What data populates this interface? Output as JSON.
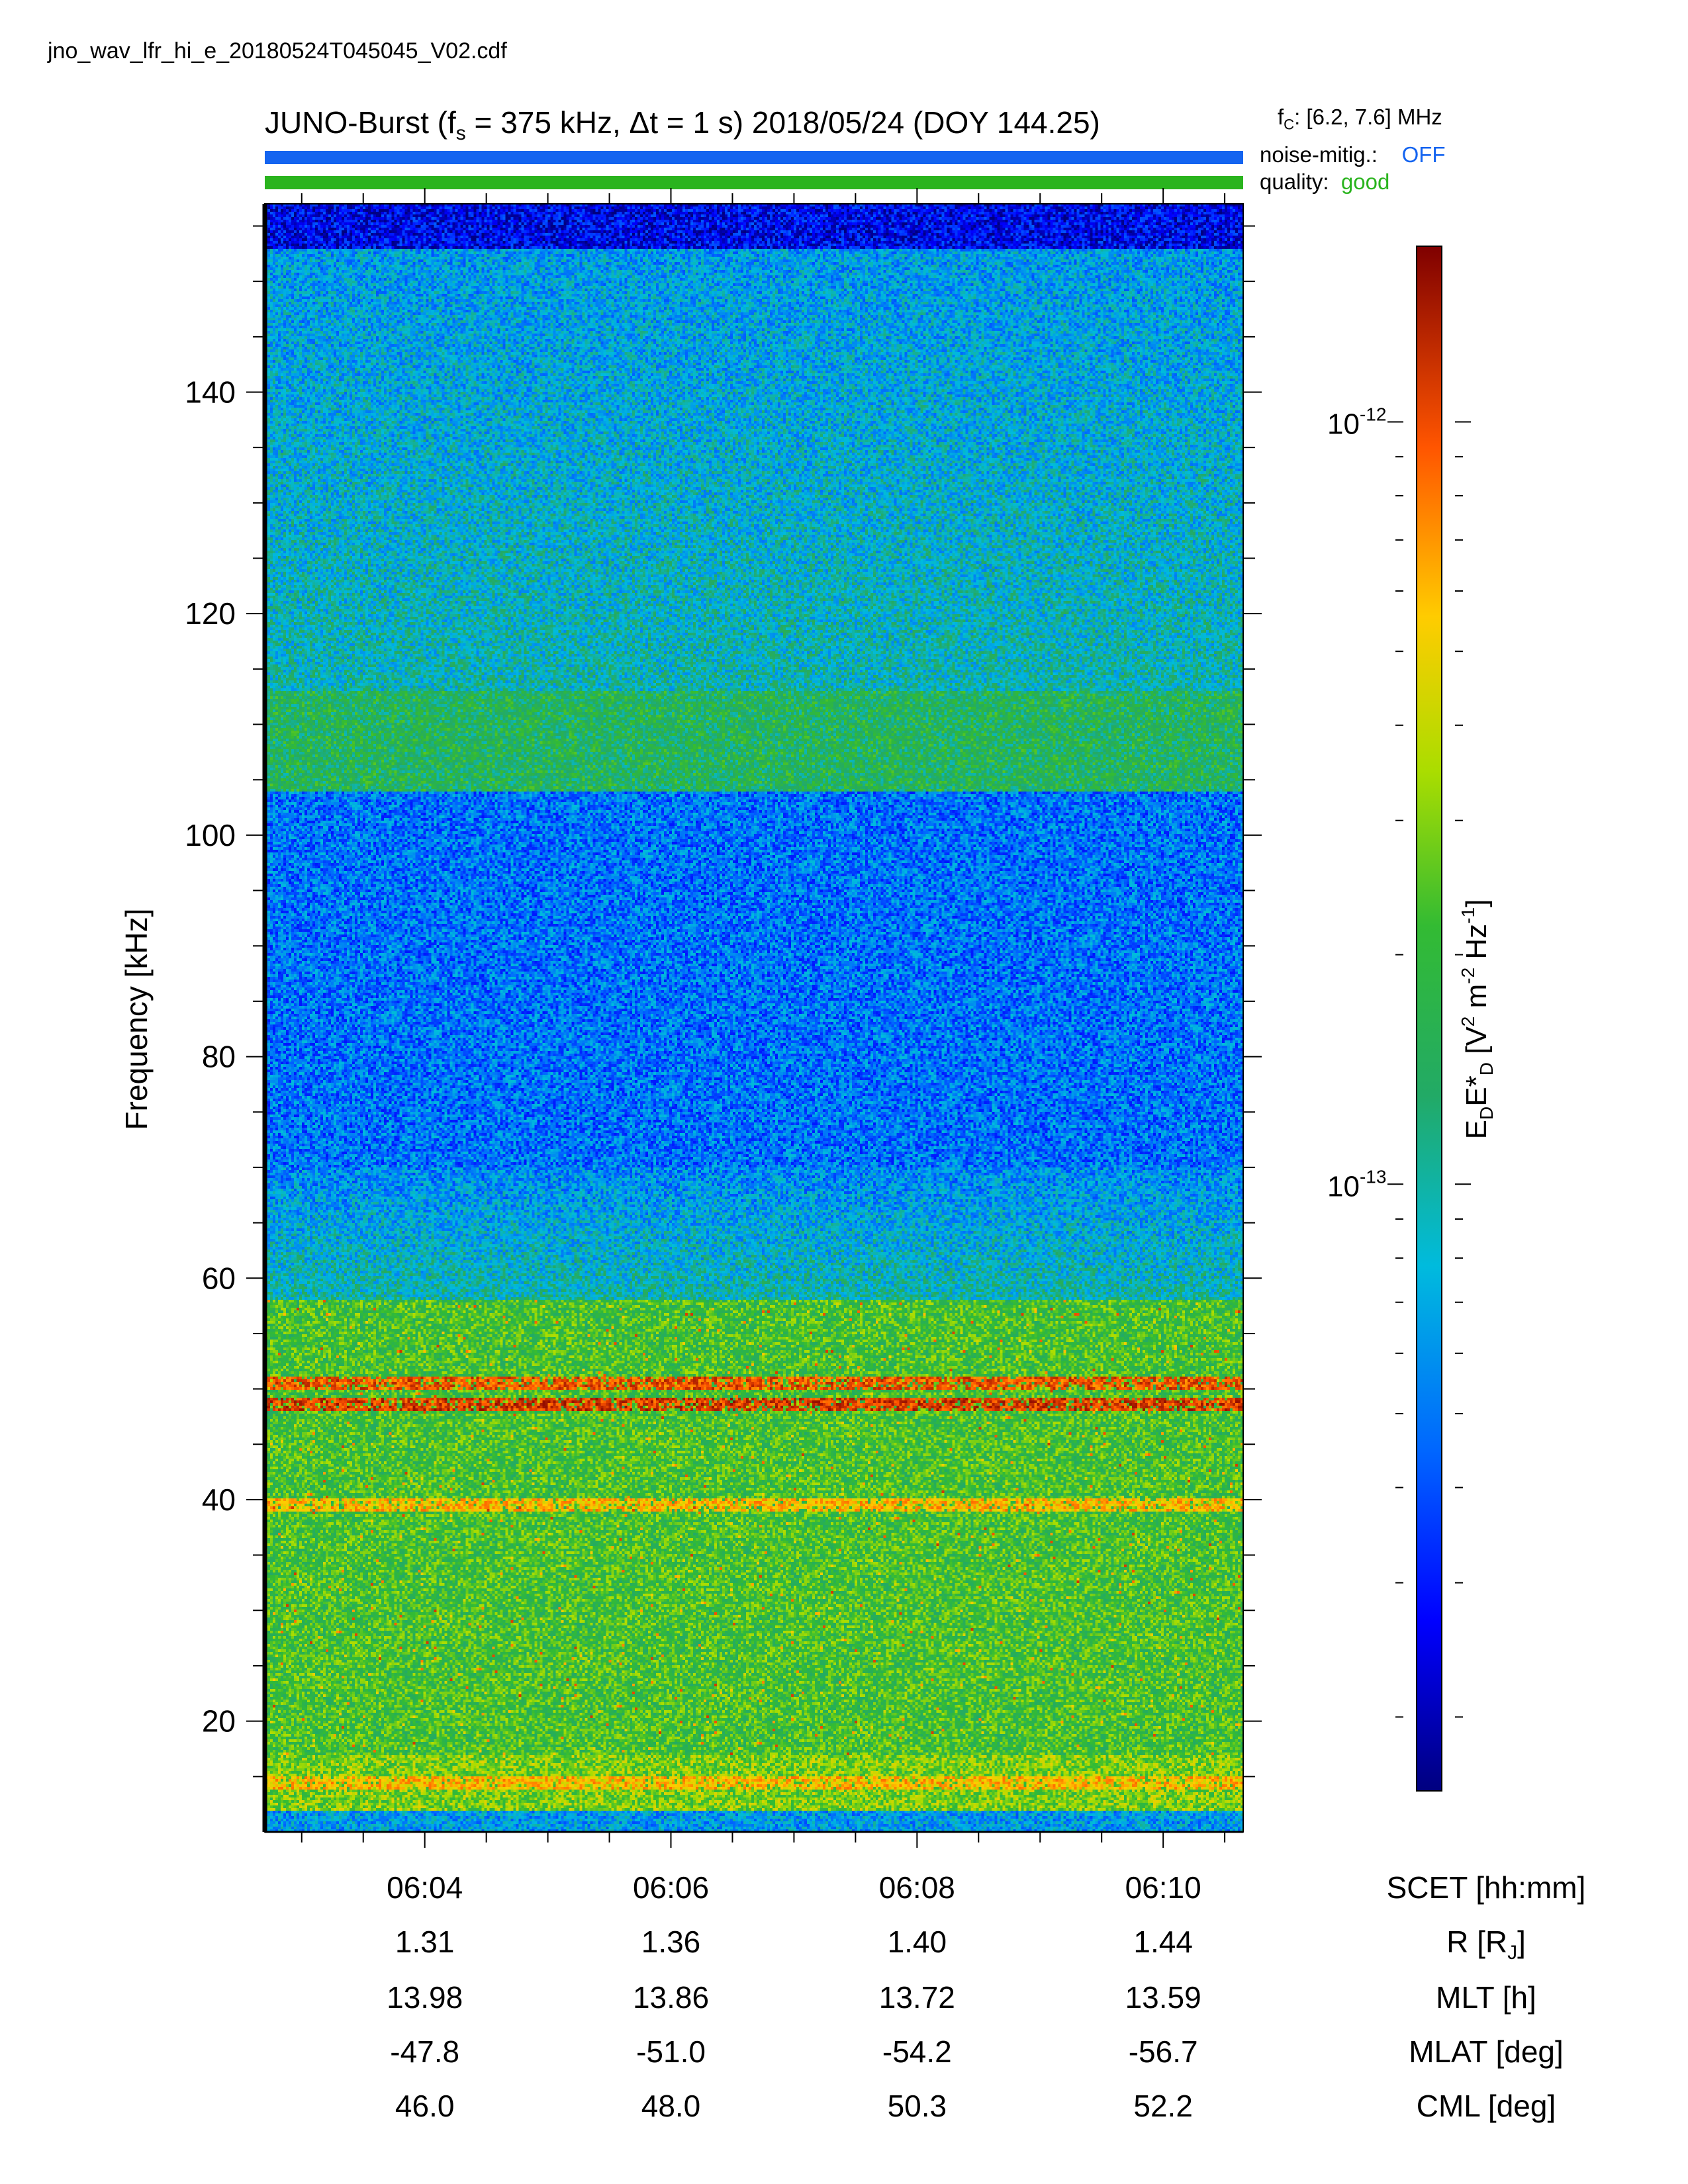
{
  "header": {
    "filename": "jno_wav_lfr_hi_e_20180524T045045_V02.cdf",
    "title_prefix": "JUNO-Burst (f",
    "title_sub": "s",
    "title_rest": " = 375 kHz, Δt = 1 s)  2018/05/24 (DOY 144.25)",
    "fc_label": "f",
    "fc_sub": "C",
    "fc_value": ": [6.2, 7.6] MHz",
    "noise_label": "noise-mitig.:",
    "noise_value": "OFF",
    "quality_label": "quality:",
    "quality_value": "good"
  },
  "colors": {
    "noise_bar": "#1464f0",
    "quality_bar": "#2ab41e",
    "noise_value": "#1464f0",
    "quality_value": "#2ab41e"
  },
  "chart_data": {
    "type": "heatmap",
    "ylabel": "Frequency [kHz]",
    "ylim": [
      10,
      157
    ],
    "y_ticks": [
      20,
      40,
      60,
      80,
      100,
      120,
      140
    ],
    "y_tick_labels": [
      "20",
      "40",
      "60",
      "80",
      "100",
      "120",
      "140"
    ],
    "xlim_minutes": [
      362.7,
      370.65
    ],
    "x_ticks_minutes": [
      364,
      366,
      368,
      370
    ],
    "colorbar": {
      "label_parts": [
        "E",
        "D",
        "E*",
        "D",
        " [V",
        "2",
        " m",
        "-2",
        " Hz",
        "-1",
        "]"
      ],
      "scale": "log",
      "range": [
        1.6e-14,
        1.7e-12
      ],
      "tick_labels": [
        {
          "base": "10",
          "exp": "-12",
          "value": 1e-12
        },
        {
          "base": "10",
          "exp": "-13",
          "value": 1e-13
        }
      ],
      "colormap": "jet"
    },
    "features": [
      {
        "desc": "enhanced emission band",
        "freq_khz": [
          106,
          112
        ],
        "intensity": 0.52
      },
      {
        "desc": "broadband emission",
        "freq_khz": [
          12,
          58
        ],
        "intensity": 0.7
      },
      {
        "desc": "narrowband line",
        "freq_khz": 50.5,
        "intensity": 0.95
      },
      {
        "desc": "narrowband line",
        "freq_khz": 48.5,
        "intensity": 0.98
      },
      {
        "desc": "narrowband line",
        "freq_khz": 39.5,
        "intensity": 0.85
      },
      {
        "desc": "narrowband line",
        "freq_khz": 14.5,
        "intensity": 0.85
      }
    ],
    "ephemeris": {
      "labels": [
        "SCET [hh:mm]",
        "R [R",
        "MLT [h]",
        "MLAT [deg]",
        "CML [deg]"
      ],
      "r_sub": "J",
      "r_close": "]",
      "rows": [
        [
          "06:04",
          "06:06",
          "06:08",
          "06:10"
        ],
        [
          "1.31",
          "1.36",
          "1.40",
          "1.44"
        ],
        [
          "13.98",
          "13.86",
          "13.72",
          "13.59"
        ],
        [
          "-47.8",
          "-51.0",
          "-54.2",
          "-56.7"
        ],
        [
          "46.0",
          "48.0",
          "50.3",
          "52.2"
        ]
      ]
    }
  }
}
